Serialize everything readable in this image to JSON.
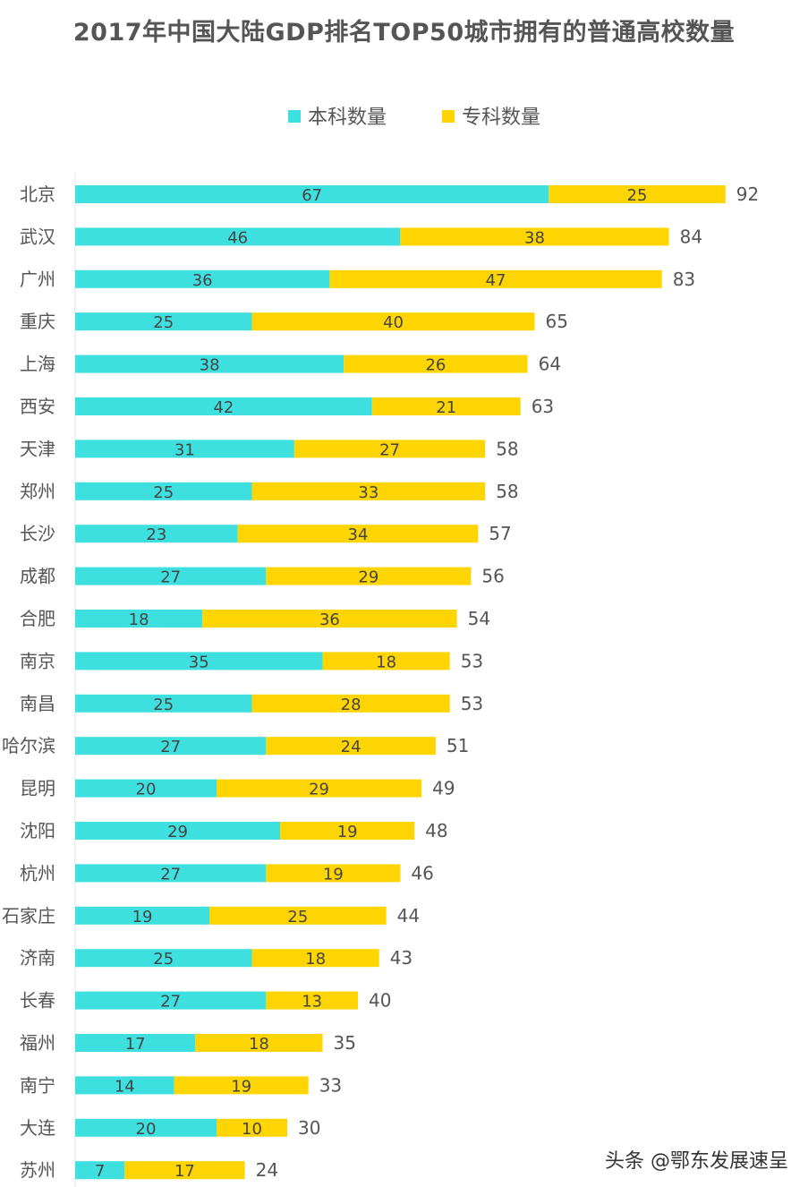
{
  "chart_data": {
    "type": "bar",
    "orientation": "horizontal",
    "stacked": true,
    "title": "2017年中国大陆GDP排名TOP50城市拥有的普通高校数量",
    "legend_position": "top",
    "grid": false,
    "categories": [
      "北京",
      "武汉",
      "广州",
      "重庆",
      "上海",
      "西安",
      "天津",
      "郑州",
      "长沙",
      "成都",
      "合肥",
      "南京",
      "南昌",
      "哈尔滨",
      "昆明",
      "沈阳",
      "杭州",
      "石家庄",
      "济南",
      "长春",
      "福州",
      "南宁",
      "大连",
      "苏州"
    ],
    "series": [
      {
        "name": "本科数量",
        "color": "#3ee0df",
        "values": [
          67,
          46,
          36,
          25,
          38,
          42,
          31,
          25,
          23,
          27,
          18,
          35,
          25,
          27,
          20,
          29,
          27,
          19,
          25,
          27,
          17,
          14,
          20,
          7
        ]
      },
      {
        "name": "专科数量",
        "color": "#fed500",
        "values": [
          25,
          38,
          47,
          40,
          26,
          21,
          27,
          33,
          34,
          29,
          36,
          18,
          28,
          24,
          29,
          19,
          19,
          25,
          18,
          13,
          18,
          19,
          10,
          17
        ]
      }
    ],
    "totals": [
      92,
      84,
      83,
      65,
      64,
      63,
      58,
      58,
      57,
      56,
      54,
      53,
      53,
      51,
      49,
      48,
      46,
      44,
      43,
      40,
      35,
      33,
      30,
      24
    ],
    "xlim": [
      0,
      92
    ]
  },
  "watermark": "头条 @鄂东发展速呈"
}
